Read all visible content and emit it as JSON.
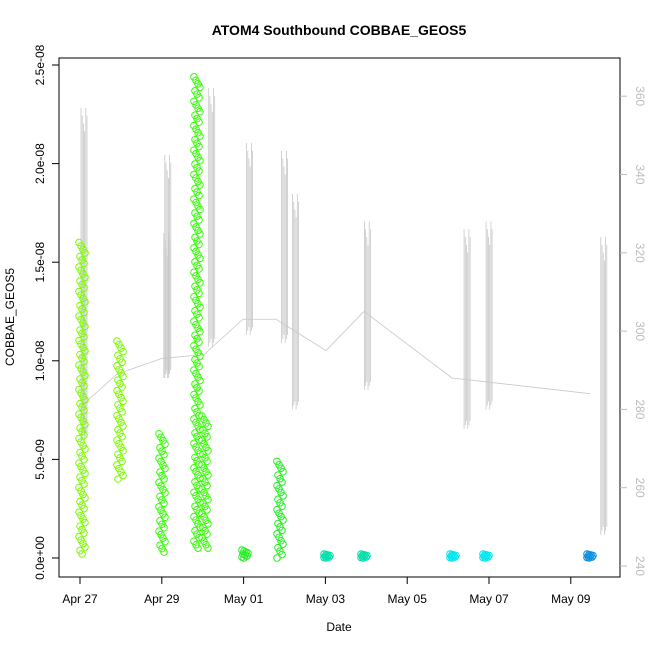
{
  "chart_data": {
    "type": "scatter",
    "title": "ATOM4 Southbound COBBAE_GEOS5",
    "xlabel": "Date",
    "ylabel": "COBBAE_GEOS5",
    "x_ticks": [
      "Apr 27",
      "Apr 29",
      "May 01",
      "May 03",
      "May 05",
      "May 07",
      "May 09"
    ],
    "y_ticks": [
      "0.0e+00",
      "5.0e-09",
      "1.0e-08",
      "1.5e-08",
      "2.0e-08",
      "2.5e-08"
    ],
    "y_right_ticks": [
      "240",
      "260",
      "280",
      "300",
      "320",
      "340",
      "360"
    ],
    "xlim": [
      "2018-04-27",
      "2018-05-10"
    ],
    "ylim": [
      0,
      2.55e-08
    ],
    "y_right_lim": [
      240,
      365
    ],
    "grid": false,
    "scatter_clusters": [
      {
        "date": "2018-04-27",
        "ymin": 2e-10,
        "ymax": 1.6e-08,
        "color": "#7cfc00"
      },
      {
        "date": "2018-04-28",
        "ymin": 4e-09,
        "ymax": 1.1e-08,
        "color": "#7cfc00"
      },
      {
        "date": "2018-04-29",
        "ymin": 3e-10,
        "ymax": 6.3e-09,
        "color": "#32ff00"
      },
      {
        "date": "2018-04-29",
        "ymin": 5e-10,
        "ymax": 2.44e-08,
        "color": "#32ff00"
      },
      {
        "date": "2018-04-30",
        "ymin": 5e-10,
        "ymax": 7.2e-09,
        "color": "#32ff00"
      },
      {
        "date": "2018-05-01",
        "ymin": 0.0,
        "ymax": 4e-10,
        "color": "#22ee22"
      },
      {
        "date": "2018-05-01",
        "ymin": 0.0,
        "ymax": 4.9e-09,
        "color": "#22ee22"
      },
      {
        "date": "2018-05-03",
        "ymin": 0.0,
        "ymax": 2e-10,
        "color": "#00dfaa"
      },
      {
        "date": "2018-05-03",
        "ymin": 0.0,
        "ymax": 2e-10,
        "color": "#00dfaa"
      },
      {
        "date": "2018-05-06",
        "ymin": 0.0,
        "ymax": 2e-10,
        "color": "#00e5ee"
      },
      {
        "date": "2018-05-06",
        "ymin": 0.0,
        "ymax": 2e-10,
        "color": "#00e5ee"
      },
      {
        "date": "2018-05-09",
        "ymin": 0.0,
        "ymax": 2e-10,
        "color": "#0a8ee0"
      }
    ],
    "altitude_segments": [
      {
        "date": "2018-04-27",
        "min": 272,
        "max": 357
      },
      {
        "date": "2018-04-29",
        "min": 288,
        "max": 345
      },
      {
        "date": "2018-04-29",
        "min": 288,
        "max": 325
      },
      {
        "date": "2018-04-30",
        "min": 296,
        "max": 362
      },
      {
        "date": "2018-05-01",
        "min": 299,
        "max": 348
      },
      {
        "date": "2018-05-01",
        "min": 297,
        "max": 346
      },
      {
        "date": "2018-05-02",
        "min": 280,
        "max": 335
      },
      {
        "date": "2018-05-03",
        "min": 285,
        "max": 328
      },
      {
        "date": "2018-05-06",
        "min": 275,
        "max": 326
      },
      {
        "date": "2018-05-06",
        "min": 280,
        "max": 328
      },
      {
        "date": "2018-05-09",
        "min": 248,
        "max": 324
      }
    ]
  }
}
